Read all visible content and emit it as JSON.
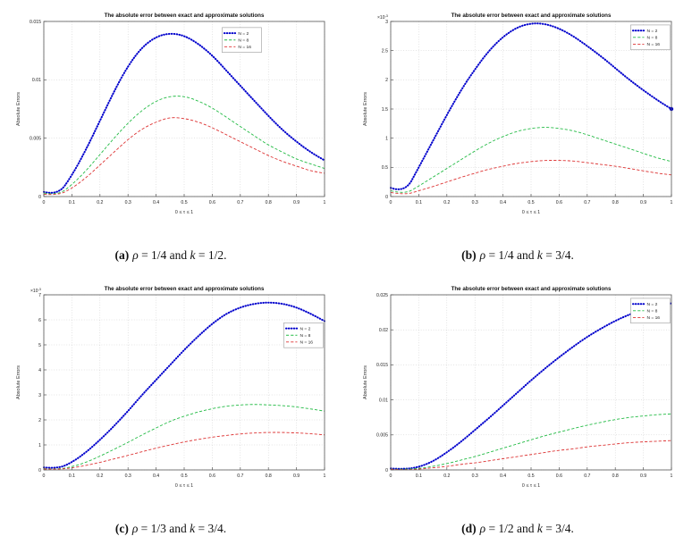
{
  "figure": {
    "captions": [
      {
        "label": "(a)",
        "var1": "ρ",
        "eq1": " = 1/4 and ",
        "var2": "k",
        "eq2": " = 1/2."
      },
      {
        "label": "(b)",
        "var1": "ρ",
        "eq1": " = 1/4 and ",
        "var2": "k",
        "eq2": " = 3/4."
      },
      {
        "label": "(c)",
        "var1": "ρ",
        "eq1": " = 1/3 and ",
        "var2": "k",
        "eq2": " = 3/4."
      },
      {
        "label": "(d)",
        "var1": "ρ",
        "eq1": " = 1/2 and ",
        "var2": "k",
        "eq2": " = 3/4."
      }
    ]
  },
  "chart_data": [
    {
      "type": "line",
      "title": "The absolute error between exact and approximate solutions",
      "xlabel": "0 ≤ τ ≤ 1",
      "ylabel": "Absolute Errors",
      "xlim": [
        0,
        1
      ],
      "ylim": [
        0,
        0.015
      ],
      "grid": true,
      "xticks": [
        0,
        0.1,
        0.2,
        0.3,
        0.4,
        0.5,
        0.6,
        0.7,
        0.8,
        0.9,
        1
      ],
      "xtick_labels": [
        "0",
        "0.1",
        "0.2",
        "0.3",
        "0.4",
        "0.5",
        "0.6",
        "0.7",
        "0.8",
        "0.9",
        "1"
      ],
      "yticks": [
        0,
        0.005,
        0.01,
        0.015
      ],
      "ytick_labels": [
        "0",
        "0.005",
        "0.01",
        "0.015"
      ],
      "y_exp_base": null,
      "y_exp": null,
      "legend": {
        "pos": [
          0.635,
          0.035
        ]
      },
      "x": [
        0,
        0.05,
        0.1,
        0.15,
        0.2,
        0.25,
        0.3,
        0.35,
        0.4,
        0.45,
        0.5,
        0.55,
        0.6,
        0.65,
        0.7,
        0.75,
        0.8,
        0.85,
        0.9,
        0.95,
        1
      ],
      "series": [
        {
          "name": "N = 2",
          "color": "#0000cc",
          "style": "dotted",
          "y": [
            0.0004,
            0.0001,
            0.0018,
            0.004,
            0.0065,
            0.009,
            0.0112,
            0.0128,
            0.0137,
            0.014,
            0.0138,
            0.0131,
            0.0121,
            0.0108,
            0.0095,
            0.0082,
            0.0069,
            0.0057,
            0.0047,
            0.0038,
            0.0031
          ]
        },
        {
          "name": "N = 8",
          "color": "#22bb44",
          "style": "dashed",
          "y": [
            0.0003,
            0.0001,
            0.001,
            0.0022,
            0.0036,
            0.005,
            0.0063,
            0.0074,
            0.0082,
            0.0086,
            0.0086,
            0.0082,
            0.0076,
            0.0068,
            0.006,
            0.0052,
            0.0044,
            0.0038,
            0.0032,
            0.0028,
            0.0024
          ]
        },
        {
          "name": "N = 16",
          "color": "#dd3333",
          "style": "dashed",
          "y": [
            0.0002,
            0.0001,
            0.0007,
            0.0016,
            0.0027,
            0.0038,
            0.0049,
            0.0058,
            0.0064,
            0.0068,
            0.0067,
            0.0064,
            0.0059,
            0.0053,
            0.0047,
            0.0041,
            0.0035,
            0.003,
            0.0026,
            0.0022,
            0.002
          ]
        }
      ]
    },
    {
      "type": "line",
      "title": "The absolute error between exact and approximate solutions",
      "xlabel": "0 ≤ τ ≤ 1",
      "ylabel": "Absolute Errors",
      "xlim": [
        0,
        1
      ],
      "ylim": [
        0,
        0.003
      ],
      "grid": true,
      "xticks": [
        0,
        0.1,
        0.2,
        0.3,
        0.4,
        0.5,
        0.6,
        0.7,
        0.8,
        0.9,
        1
      ],
      "xtick_labels": [
        "0",
        "0.1",
        "0.2",
        "0.3",
        "0.4",
        "0.5",
        "0.6",
        "0.7",
        "0.8",
        "0.9",
        "1"
      ],
      "yticks": [
        0,
        0.0005,
        0.001,
        0.0015,
        0.002,
        0.0025,
        0.003
      ],
      "ytick_labels": [
        "0",
        "0.5",
        "1",
        "1.5",
        "2",
        "2.5",
        "3"
      ],
      "y_exp_base": "×10",
      "y_exp": "-3",
      "legend": {
        "pos": [
          0.855,
          0.02
        ]
      },
      "x": [
        0,
        0.05,
        0.1,
        0.15,
        0.2,
        0.25,
        0.3,
        0.35,
        0.4,
        0.45,
        0.5,
        0.55,
        0.6,
        0.65,
        0.7,
        0.75,
        0.8,
        0.85,
        0.9,
        0.95,
        1
      ],
      "series": [
        {
          "name": "N = 2",
          "color": "#0000cc",
          "style": "dotted",
          "end_dot": true,
          "y": [
            0.00015,
            6e-05,
            0.0005,
            0.00095,
            0.0014,
            0.00182,
            0.00218,
            0.0025,
            0.00274,
            0.0029,
            0.00297,
            0.00296,
            0.00288,
            0.00275,
            0.00258,
            0.0024,
            0.0022,
            0.002,
            0.00182,
            0.00165,
            0.0015
          ]
        },
        {
          "name": "N = 8",
          "color": "#22bb44",
          "style": "dashed",
          "y": [
            0.0001,
            4e-05,
            0.00018,
            0.00033,
            0.00048,
            0.00063,
            0.00078,
            0.00092,
            0.00103,
            0.00112,
            0.00117,
            0.00119,
            0.00117,
            0.00113,
            0.00106,
            0.00098,
            0.0009,
            0.00082,
            0.00074,
            0.00066,
            0.0006
          ]
        },
        {
          "name": "N = 16",
          "color": "#dd3333",
          "style": "dashed",
          "y": [
            7e-05,
            3e-05,
            0.0001,
            0.00017,
            0.00025,
            0.00033,
            0.0004,
            0.00047,
            0.00052,
            0.00057,
            0.0006,
            0.00062,
            0.00062,
            0.00061,
            0.00058,
            0.00055,
            0.00052,
            0.00048,
            0.00044,
            0.0004,
            0.00037
          ]
        }
      ]
    },
    {
      "type": "line",
      "title": "The absolute error between exact and approximate solutions",
      "xlabel": "0 ≤ τ ≤ 1",
      "ylabel": "Absolute Errors",
      "xlim": [
        0,
        1
      ],
      "ylim": [
        0,
        0.007
      ],
      "grid": true,
      "xticks": [
        0,
        0.1,
        0.2,
        0.3,
        0.4,
        0.5,
        0.6,
        0.7,
        0.8,
        0.9,
        1
      ],
      "xtick_labels": [
        "0",
        "0.1",
        "0.2",
        "0.3",
        "0.4",
        "0.5",
        "0.6",
        "0.7",
        "0.8",
        "0.9",
        "1"
      ],
      "yticks": [
        0,
        0.001,
        0.002,
        0.003,
        0.004,
        0.005,
        0.006,
        0.007
      ],
      "ytick_labels": [
        "0",
        "1",
        "2",
        "3",
        "4",
        "5",
        "6",
        "7"
      ],
      "y_exp_base": "×10",
      "y_exp": "-3",
      "legend": {
        "pos": [
          0.855,
          0.16
        ]
      },
      "x": [
        0,
        0.05,
        0.1,
        0.15,
        0.2,
        0.25,
        0.3,
        0.35,
        0.4,
        0.45,
        0.5,
        0.55,
        0.6,
        0.65,
        0.7,
        0.75,
        0.8,
        0.85,
        0.9,
        0.95,
        1
      ],
      "series": [
        {
          "name": "N = 2",
          "color": "#0000cc",
          "style": "dotted",
          "y": [
            0.0001,
            5e-05,
            0.0003,
            0.0007,
            0.0012,
            0.00175,
            0.00235,
            0.003,
            0.0036,
            0.0042,
            0.0048,
            0.00535,
            0.00585,
            0.00625,
            0.0065,
            0.00665,
            0.0067,
            0.00665,
            0.0065,
            0.00625,
            0.00595
          ]
        },
        {
          "name": "N = 8",
          "color": "#22bb44",
          "style": "dashed",
          "y": [
            5e-05,
            3e-05,
            0.00012,
            0.0003,
            0.00055,
            0.00082,
            0.0011,
            0.0014,
            0.00168,
            0.00195,
            0.00215,
            0.00232,
            0.00245,
            0.00255,
            0.0026,
            0.00262,
            0.0026,
            0.00257,
            0.00252,
            0.00244,
            0.00235
          ]
        },
        {
          "name": "N = 16",
          "color": "#dd3333",
          "style": "dashed",
          "y": [
            4e-05,
            2e-05,
            8e-05,
            0.00018,
            0.0003,
            0.00044,
            0.00058,
            0.00073,
            0.00087,
            0.001,
            0.00112,
            0.00122,
            0.00131,
            0.00138,
            0.00144,
            0.00148,
            0.0015,
            0.0015,
            0.00148,
            0.00145,
            0.0014
          ]
        }
      ]
    },
    {
      "type": "line",
      "title": "The absolute error between exact and approximate solutions",
      "xlabel": "0 ≤ τ ≤ 1",
      "ylabel": "Absolute Errors",
      "xlim": [
        0,
        1
      ],
      "ylim": [
        0,
        0.025
      ],
      "grid": true,
      "xticks": [
        0,
        0.1,
        0.2,
        0.3,
        0.4,
        0.5,
        0.6,
        0.7,
        0.8,
        0.9,
        1
      ],
      "xtick_labels": [
        "0",
        "0.1",
        "0.2",
        "0.3",
        "0.4",
        "0.5",
        "0.6",
        "0.7",
        "0.8",
        "0.9",
        "1"
      ],
      "yticks": [
        0,
        0.005,
        0.01,
        0.015,
        0.02,
        0.025
      ],
      "ytick_labels": [
        "0",
        "0.005",
        "0.01",
        "0.015",
        "0.02",
        "0.025"
      ],
      "y_exp_base": null,
      "y_exp": null,
      "legend": {
        "pos": [
          0.855,
          0.02
        ]
      },
      "x": [
        0,
        0.05,
        0.1,
        0.15,
        0.2,
        0.25,
        0.3,
        0.35,
        0.4,
        0.45,
        0.5,
        0.55,
        0.6,
        0.65,
        0.7,
        0.75,
        0.8,
        0.85,
        0.9,
        0.95,
        1
      ],
      "series": [
        {
          "name": "N = 2",
          "color": "#0000cc",
          "style": "dotted",
          "y": [
            0.0002,
            0.0001,
            0.0004,
            0.0012,
            0.0025,
            0.004,
            0.0057,
            0.0074,
            0.0092,
            0.011,
            0.0128,
            0.0145,
            0.0161,
            0.0176,
            0.019,
            0.0202,
            0.0213,
            0.0222,
            0.0229,
            0.0234,
            0.0238
          ]
        },
        {
          "name": "N = 8",
          "color": "#22bb44",
          "style": "dashed",
          "y": [
            0.0001,
            0.0001,
            0.0002,
            0.0005,
            0.0009,
            0.0014,
            0.0019,
            0.0025,
            0.0031,
            0.0037,
            0.0043,
            0.0049,
            0.0054,
            0.0059,
            0.0064,
            0.0068,
            0.0072,
            0.0075,
            0.0077,
            0.0079,
            0.008
          ]
        },
        {
          "name": "N = 16",
          "color": "#dd3333",
          "style": "dashed",
          "y": [
            0.0001,
            0.0,
            0.0001,
            0.0003,
            0.0005,
            0.0008,
            0.001,
            0.0013,
            0.0016,
            0.0019,
            0.0022,
            0.0025,
            0.0028,
            0.003,
            0.0033,
            0.0035,
            0.0037,
            0.0039,
            0.004,
            0.0041,
            0.0042
          ]
        }
      ]
    }
  ]
}
